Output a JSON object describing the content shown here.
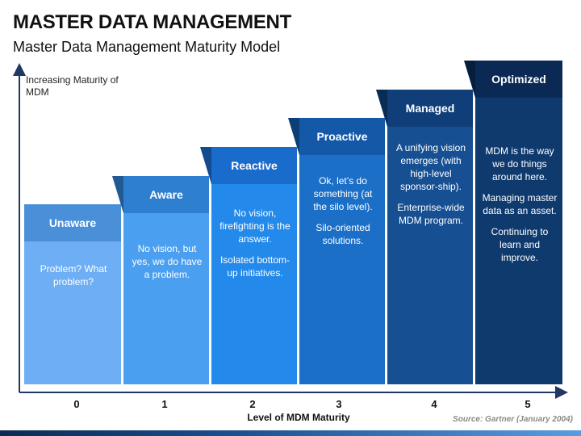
{
  "title": "MASTER DATA MANAGEMENT",
  "subtitle": "Master Data Management Maturity Model",
  "y_axis_label": "Increasing Maturity of MDM",
  "x_axis_label": "Level of MDM Maturity",
  "source": "Source: Gartner (January 2004)",
  "levels": [
    {
      "number": "0",
      "name": "Unaware",
      "lines": [
        "Problem? What problem?"
      ],
      "body_color": "#6eaef5",
      "head_color": "#4a90d9"
    },
    {
      "number": "1",
      "name": "Aware",
      "lines": [
        "No vision, but yes, we do have a problem."
      ],
      "body_color": "#4a9ff0",
      "head_color": "#2f7fd0"
    },
    {
      "number": "2",
      "name": "Reactive",
      "lines": [
        "No vision, firefighting is the answer.",
        "Isolated bottom-up initiatives."
      ],
      "body_color": "#2389ea",
      "head_color": "#1a6ccc"
    },
    {
      "number": "3",
      "name": "Proactive",
      "lines": [
        "Ok, let’s do something (at the silo level).",
        "Silo-oriented solutions."
      ],
      "body_color": "#1c6fc7",
      "head_color": "#1459a8"
    },
    {
      "number": "4",
      "name": "Managed",
      "lines": [
        "A unifying vision emerges (with high-level sponsor-ship).",
        "Enterprise-wide MDM program."
      ],
      "body_color": "#164f92",
      "head_color": "#0f3e78"
    },
    {
      "number": "5",
      "name": "Optimized",
      "lines": [
        "MDM is the way we do things around here.",
        "Managing master data as an asset.",
        "Continuing to learn and improve."
      ],
      "body_color": "#0f3a6e",
      "head_color": "#0a2a55"
    }
  ]
}
